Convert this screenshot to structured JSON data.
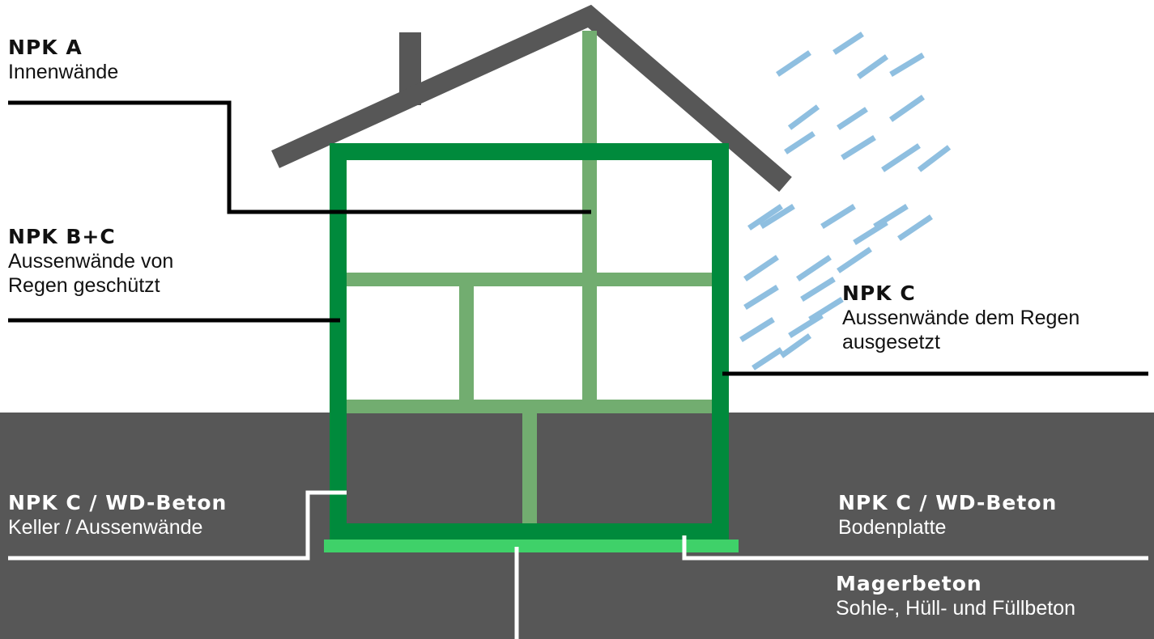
{
  "colors": {
    "ground": "#575757",
    "roof": "#575757",
    "outer_wall": "#008a3c",
    "inner_wall": "#72ad70",
    "slab": "#3fd169",
    "rain": "#8fbfe0",
    "leader_dark": "#000000",
    "leader_light": "#ffffff"
  },
  "labels": {
    "npk_a": {
      "title": "NPK A",
      "desc": "Innenwände"
    },
    "npk_bc": {
      "title": "NPK B+C",
      "desc_1": "Aussenwände von",
      "desc_2": "Regen geschützt"
    },
    "npk_c": {
      "title": "NPK C",
      "desc_1": "Aussenwände dem Regen",
      "desc_2": "ausgesetzt"
    },
    "npk_c_keller": {
      "title": "NPK C / WD-Beton",
      "desc": "Keller / Aussenwände"
    },
    "npk_c_boden": {
      "title": "NPK C / WD-Beton",
      "desc": "Bodenplatte"
    },
    "magerbeton": {
      "title": "Magerbeton",
      "desc": "Sohle-, Hüll- und Füllbeton"
    }
  }
}
